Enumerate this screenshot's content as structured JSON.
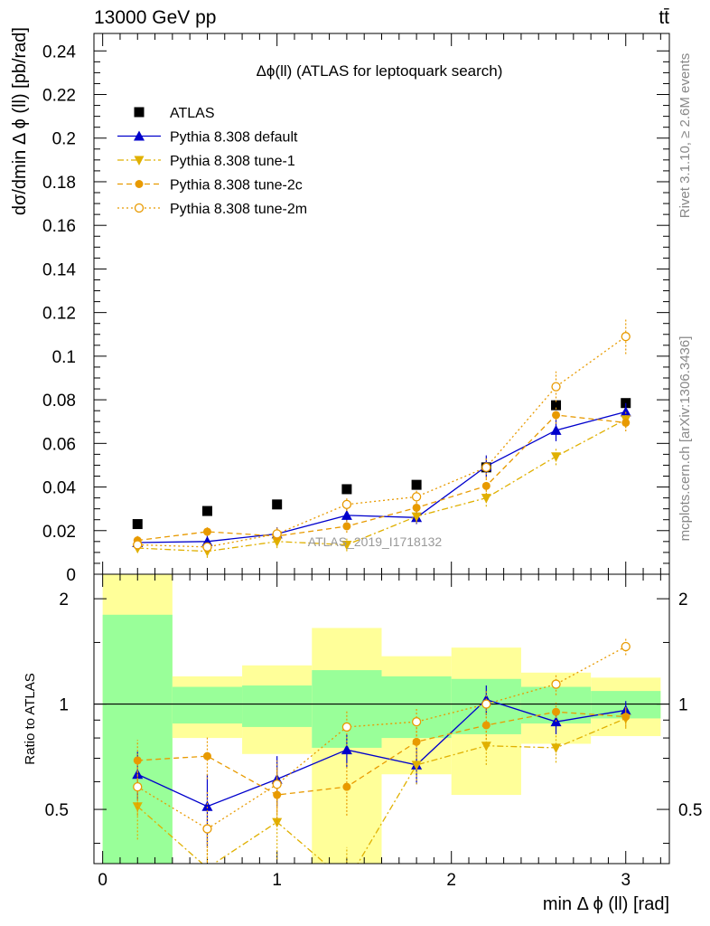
{
  "header": {
    "energy_label": "13000 GeV pp",
    "process_label": "tt̄",
    "rivet_label": "Rivet 3.1.10, ≥ 2.6M events",
    "mcplots_label": "mcplots.cern.ch [arXiv:1306.3436]"
  },
  "chart_data": [
    {
      "type": "scatter",
      "title": "Δϕ(ll) (ATLAS for leptoquark search)",
      "ylabel": "dσ/dmin Δ ϕ (ll) [pb/rad]",
      "xlabel": "",
      "xlim": [
        -0.05,
        3.25
      ],
      "ylim": [
        0,
        0.248
      ],
      "watermark": "ATLAS_2019_I1718132",
      "y_ticks": [
        0,
        0.02,
        0.04,
        0.06,
        0.08,
        0.1,
        0.12,
        0.14,
        0.16,
        0.18,
        0.2,
        0.22,
        0.24
      ],
      "y_tick_labels": [
        "0",
        "0.02",
        "0.04",
        "0.06",
        "0.08",
        "0.1",
        "0.12",
        "0.14",
        "0.16",
        "0.18",
        "0.2",
        "0.22",
        "0.24"
      ],
      "legend_position": "top-left",
      "x": [
        0.2,
        0.6,
        1.0,
        1.4,
        1.8,
        2.2,
        2.6,
        3.0
      ],
      "series": [
        {
          "name": "ATLAS",
          "style": "data",
          "color": "#000000",
          "values": [
            0.023,
            0.029,
            0.032,
            0.039,
            0.041,
            0.049,
            0.0775,
            0.0785
          ],
          "errors": [
            0,
            0,
            0,
            0,
            0,
            0,
            0,
            0
          ]
        },
        {
          "name": "Pythia 8.308 default",
          "style": "solid-triangle",
          "color": "#0000cc",
          "values": [
            0.0145,
            0.015,
            0.0185,
            0.027,
            0.026,
            0.0495,
            0.066,
            0.0745
          ],
          "errors": [
            0.002,
            0.003,
            0.003,
            0.003,
            0.003,
            0.005,
            0.005,
            0.004
          ]
        },
        {
          "name": "Pythia 8.308 tune-1",
          "style": "dashdot-downtriangle",
          "color": "#e0b000",
          "values": [
            0.012,
            0.0105,
            0.015,
            0.0135,
            0.0265,
            0.035,
            0.054,
            0.071
          ],
          "errors": [
            0.002,
            0.003,
            0.003,
            0.003,
            0.003,
            0.004,
            0.004,
            0.004
          ]
        },
        {
          "name": "Pythia 8.308 tune-2c",
          "style": "dashed-circle",
          "color": "#e89a00",
          "values": [
            0.0155,
            0.0195,
            0.0175,
            0.022,
            0.0305,
            0.0405,
            0.073,
            0.0695
          ],
          "errors": [
            0.002,
            0.002,
            0.002,
            0.003,
            0.003,
            0.004,
            0.004,
            0.004
          ]
        },
        {
          "name": "Pythia 8.308 tune-2m",
          "style": "dotted-opencircle",
          "color": "#e89a00",
          "values": [
            0.0135,
            0.0125,
            0.0185,
            0.032,
            0.0355,
            0.049,
            0.086,
            0.109
          ],
          "errors": [
            0.002,
            0.002,
            0.003,
            0.003,
            0.003,
            0.005,
            0.007,
            0.008
          ]
        }
      ]
    },
    {
      "type": "scatter",
      "title": "",
      "ylabel": "Ratio to ATLAS",
      "xlabel": "min Δ ϕ (ll) [rad]",
      "xlim": [
        -0.05,
        3.25
      ],
      "ylim": [
        0.35,
        2.35
      ],
      "y_ticks": [
        0.5,
        1,
        2
      ],
      "y_tick_labels": [
        "0.5",
        "1",
        "2"
      ],
      "x_ticks": [
        0,
        1,
        2,
        3
      ],
      "x_tick_labels": [
        "0",
        "1",
        "2",
        "3"
      ],
      "bins": [
        [
          0,
          0.4
        ],
        [
          0.4,
          0.8
        ],
        [
          0.8,
          1.2
        ],
        [
          1.2,
          1.6
        ],
        [
          1.6,
          2.0
        ],
        [
          2.0,
          2.4
        ],
        [
          2.4,
          2.8
        ],
        [
          2.8,
          3.2
        ]
      ],
      "band_1sigma": [
        [
          0.32,
          1.8
        ],
        [
          0.88,
          1.12
        ],
        [
          0.86,
          1.13
        ],
        [
          0.75,
          1.25
        ],
        [
          0.8,
          1.2
        ],
        [
          0.82,
          1.18
        ],
        [
          0.88,
          1.12
        ],
        [
          0.91,
          1.09
        ]
      ],
      "band_2sigma": [
        [
          0.32,
          2.45
        ],
        [
          0.8,
          1.2
        ],
        [
          0.72,
          1.29
        ],
        [
          0.35,
          1.65
        ],
        [
          0.63,
          1.37
        ],
        [
          0.55,
          1.45
        ],
        [
          0.77,
          1.23
        ],
        [
          0.81,
          1.19
        ]
      ],
      "x": [
        0.2,
        0.6,
        1.0,
        1.4,
        1.8,
        2.2,
        2.6,
        3.0
      ],
      "series": [
        {
          "name": "Pythia 8.308 default",
          "color": "#0000cc",
          "values": [
            0.63,
            0.51,
            0.61,
            0.74,
            0.67,
            1.03,
            0.89,
            0.96
          ],
          "errors": [
            0.1,
            0.12,
            0.1,
            0.08,
            0.08,
            0.1,
            0.07,
            0.06
          ]
        },
        {
          "name": "Pythia 8.308 tune-1",
          "color": "#e0b000",
          "values": [
            0.51,
            0.34,
            0.46,
            0.31,
            0.67,
            0.76,
            0.75,
            0.91
          ],
          "errors": [
            0.1,
            0.12,
            0.1,
            0.08,
            0.08,
            0.09,
            0.07,
            0.06
          ]
        },
        {
          "name": "Pythia 8.308 tune-2c",
          "color": "#e89a00",
          "values": [
            0.69,
            0.71,
            0.55,
            0.58,
            0.78,
            0.87,
            0.95,
            0.92
          ],
          "errors": [
            0.1,
            0.1,
            0.1,
            0.1,
            0.08,
            0.08,
            0.06,
            0.06
          ]
        },
        {
          "name": "Pythia 8.308 tune-2m",
          "color": "#e89a00",
          "values": [
            0.58,
            0.44,
            0.59,
            0.86,
            0.89,
            1.0,
            1.14,
            1.46
          ],
          "errors": [
            0.1,
            0.12,
            0.1,
            0.1,
            0.08,
            0.09,
            0.08,
            0.08
          ]
        }
      ]
    }
  ]
}
